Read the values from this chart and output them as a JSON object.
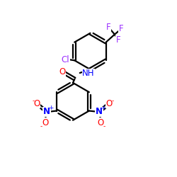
{
  "bg_color": "#ffffff",
  "bond_color": "#000000",
  "bond_lw": 1.6,
  "atom_colors": {
    "O": "#ff0000",
    "N": "#0000ff",
    "Cl": "#9b30ff",
    "F": "#9b30ff",
    "NH": "#0000ff"
  },
  "font_size_atom": 8.5,
  "font_size_small": 6.5,
  "xlim": [
    0,
    10
  ],
  "ylim": [
    0,
    10
  ]
}
